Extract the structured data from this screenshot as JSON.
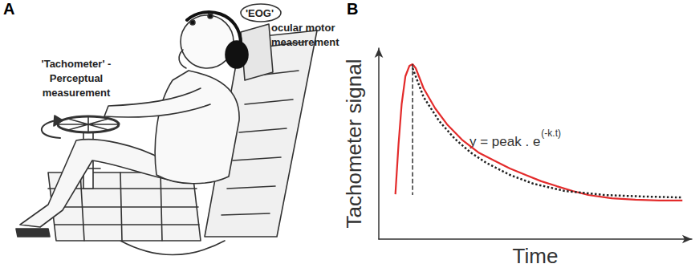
{
  "panel_labels": [
    "A",
    "B"
  ],
  "diagram": {
    "eog_label": [
      "'EOG'",
      "ocular motor",
      "measurement"
    ],
    "tachometer_label": [
      "'Tachometer' -",
      "Perceptual",
      "measurement"
    ]
  },
  "chart_data": {
    "type": "line",
    "xlabel": "Time",
    "ylabel": "Tachometer signal",
    "annotation": {
      "text": "y = peak . e",
      "exponent": "(-k.t)"
    },
    "xlim": [
      0,
      100
    ],
    "ylim": [
      0,
      100
    ],
    "tick_labels": false,
    "grid": false,
    "series": [
      {
        "color": "#e32b2b",
        "line_style": "solid",
        "x": [
          5.3,
          6.3,
          7.3,
          8.5,
          9.8,
          10.8,
          11.8,
          14.3,
          18.0,
          21.8,
          26.8,
          31.8,
          36.8,
          41.9,
          46.9,
          51.9,
          56.9,
          61.9,
          66.9,
          74.4,
          82.0,
          89.5,
          97.0
        ],
        "values": [
          23.5,
          49.6,
          70.6,
          85.3,
          90.8,
          91.6,
          89.5,
          79.0,
          68.5,
          60.1,
          51.7,
          45.4,
          41.2,
          37.0,
          33.6,
          30.3,
          27.7,
          25.2,
          23.1,
          21.4,
          20.6,
          20.2,
          20.2
        ]
      },
      {
        "color": "#222222",
        "line_style": "dotted",
        "x": [
          10.8,
          14.3,
          19.3,
          24.3,
          29.3,
          34.3,
          41.9,
          49.4,
          59.4,
          71.9,
          84.5,
          97.0
        ],
        "values": [
          89.5,
          74.4,
          61.8,
          52.5,
          45.4,
          40.0,
          33.6,
          29.0,
          25.2,
          23.1,
          22.3,
          21.8
        ]
      },
      {
        "color": "#222222",
        "line_style": "dashed",
        "x": [
          10.8,
          10.8
        ],
        "values": [
          91.6,
          23.1
        ]
      }
    ]
  }
}
